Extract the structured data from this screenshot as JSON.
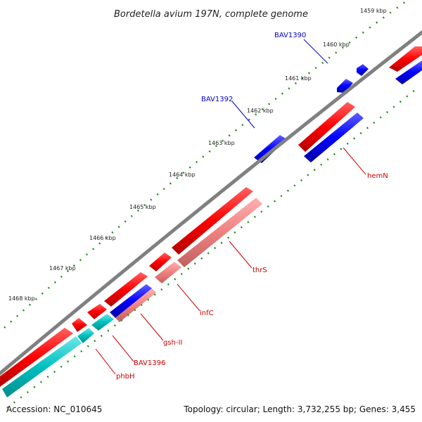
{
  "header": {
    "title": "Bordetella avium 197N, complete genome"
  },
  "footer": {
    "accession": "Accession: NC_010645",
    "summary": "Topology: circular; Length: 3,732,255 bp; Genes: 3,455"
  },
  "ticks": [
    "1459 kbp",
    "1460 kbp",
    "1461 kbp",
    "1462 kbp",
    "1463 kbp",
    "1464 kbp",
    "1465 kbp",
    "1466 kbp",
    "1467 kbp",
    "1468 kbp"
  ],
  "genes": {
    "bav1390": "BAV1390",
    "bav1392": "BAV1392",
    "hemN": "hemN",
    "thrS": "thrS",
    "infC": "infC",
    "gsh_II": "gsh-II",
    "bav1396": "BAV1396",
    "phbH": "phbH"
  },
  "colors": {
    "forward_feature": "#ff0000",
    "reverse_feature": "#0000ff",
    "cds_pink": "#f08080",
    "cds_cyan": "#00c0c0",
    "backbone": "#808080",
    "tick": "#228b22",
    "label_red": "#cc0000",
    "label_blue": "#0000cc"
  }
}
